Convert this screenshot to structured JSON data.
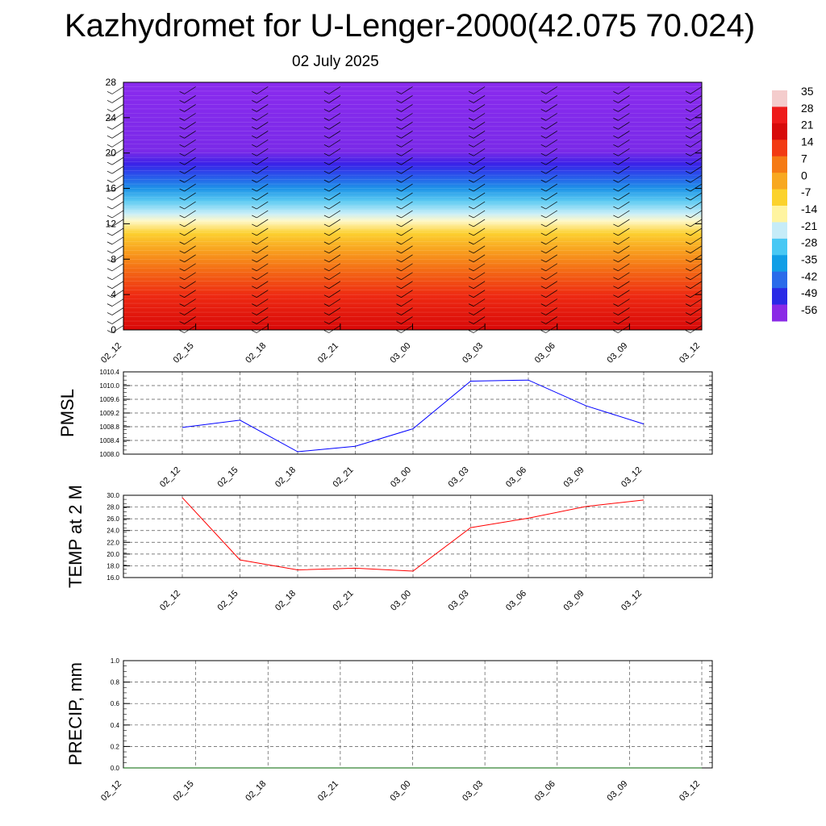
{
  "title": "Kazhydromet for U-Lenger-2000(42.075 70.024)",
  "subtitle": "02 July 2025",
  "chart_data": [
    {
      "type": "heatmap",
      "x_labels": [
        "02_12",
        "02_15",
        "02_18",
        "02_21",
        "03_00",
        "03_03",
        "03_06",
        "03_09",
        "03_12"
      ],
      "y_ticks": [
        "0",
        "4",
        "8",
        "12",
        "16",
        "20",
        "24",
        "28"
      ],
      "ylim": [
        0,
        28
      ],
      "colorbar_labels": [
        "35",
        "28",
        "21",
        "14",
        "7",
        "0",
        "-7",
        "-14",
        "-21",
        "-28",
        "-35",
        "-42",
        "-49",
        "-56"
      ],
      "colors": [
        "#f4cccc",
        "#ee1a1a",
        "#d70a0a",
        "#f23a12",
        "#f57a14",
        "#f8a820",
        "#fbd22c",
        "#fff4a0",
        "#c6ecf8",
        "#48c8f4",
        "#109ee6",
        "#2a6bea",
        "#2a2ae6",
        "#8a2ae6"
      ]
    },
    {
      "type": "line",
      "ylabel": "PMSL",
      "x": [
        "02_12",
        "02_15",
        "02_18",
        "02_21",
        "03_00",
        "03_03",
        "03_06",
        "03_09",
        "03_12"
      ],
      "values": [
        1008.78,
        1008.99,
        1008.07,
        1008.23,
        1008.74,
        1010.13,
        1010.16,
        1009.41,
        1008.88
      ],
      "ylim": [
        1008.0,
        1010.4
      ],
      "y_ticks": [
        "1008.0",
        "1008.4",
        "1008.8",
        "1009.2",
        "1009.6",
        "1010.0",
        "1010.4"
      ],
      "color": "#0000ff",
      "grid": true
    },
    {
      "type": "line",
      "ylabel": "TEMP at 2 M",
      "x": [
        "02_12",
        "02_15",
        "02_18",
        "02_21",
        "03_00",
        "03_03",
        "03_06",
        "03_09",
        "03_12"
      ],
      "values": [
        29.6,
        19.0,
        17.3,
        17.6,
        17.1,
        24.5,
        26.1,
        28.1,
        29.2
      ],
      "ylim": [
        16.0,
        30.0
      ],
      "y_ticks": [
        "16.0",
        "18.0",
        "20.0",
        "22.0",
        "24.0",
        "26.0",
        "28.0",
        "30.0"
      ],
      "color": "#ff0000",
      "grid": true
    },
    {
      "type": "line",
      "ylabel": "PRECIP, mm",
      "x": [
        "02_12",
        "02_15",
        "02_18",
        "02_21",
        "03_00",
        "03_03",
        "03_06",
        "03_09",
        "03_12"
      ],
      "values": [
        0,
        0,
        0,
        0,
        0,
        0,
        0,
        0,
        0
      ],
      "ylim": [
        0.0,
        1.0
      ],
      "y_ticks": [
        "0.0",
        "0.2",
        "0.4",
        "0.6",
        "0.8",
        "1.0"
      ],
      "color": "#006400",
      "grid": true
    }
  ]
}
